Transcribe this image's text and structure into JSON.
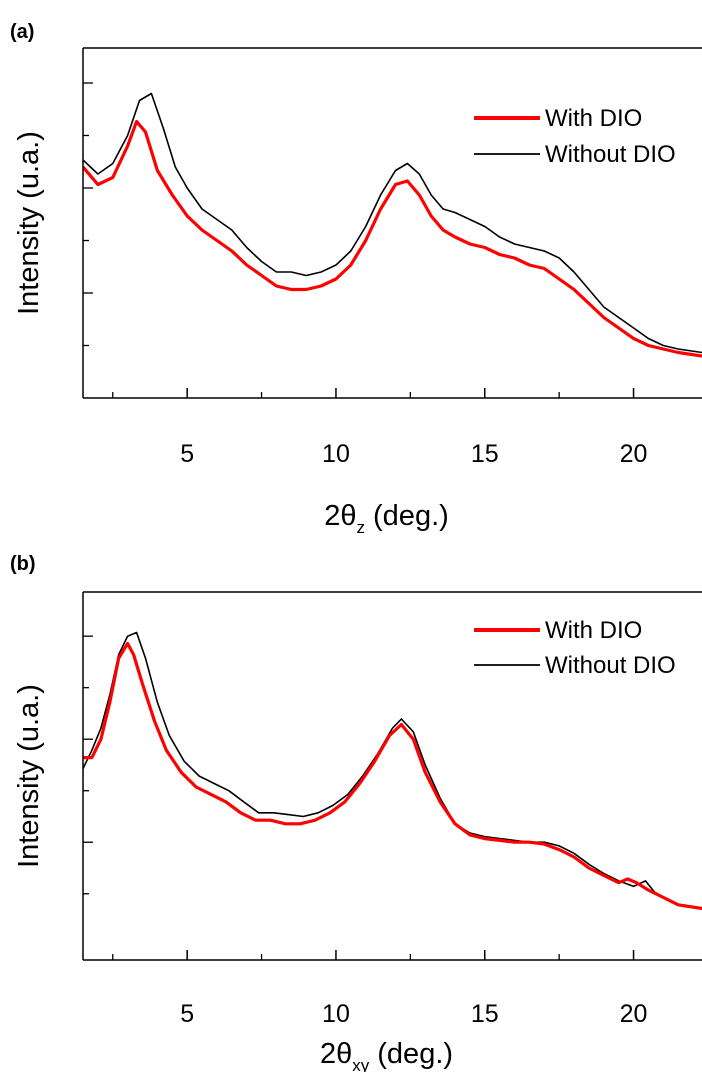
{
  "chart_data": [
    {
      "type": "line",
      "panel_label": "(a)",
      "xlabel_main": "2θ",
      "xlabel_sub": "z",
      "xlabel_tail": " (deg.)",
      "ylabel": "Intensity (u.a.)",
      "xlim": [
        1.5,
        22.3
      ],
      "ylim": [
        0,
        1
      ],
      "x_ticks": [
        5,
        10,
        15,
        20
      ],
      "x_tick_labels": [
        "5",
        "10",
        "15",
        "20"
      ],
      "x_minor_ticks": [
        2.5,
        7.5,
        12.5,
        17.5
      ],
      "y_ticks": [
        0.15,
        0.3,
        0.45,
        0.6,
        0.75,
        0.9
      ],
      "y_tick_labels_shown": false,
      "legend_position": "top-right",
      "series": [
        {
          "name": "With DIO",
          "color": "#ff0000",
          "x": [
            1.5,
            2.0,
            2.5,
            3.0,
            3.3,
            3.6,
            4.0,
            4.5,
            5.0,
            5.5,
            6.0,
            6.5,
            7.0,
            7.5,
            8.0,
            8.5,
            9.0,
            9.5,
            10.0,
            10.5,
            11.0,
            11.5,
            12.0,
            12.4,
            12.8,
            13.2,
            13.6,
            14.0,
            14.5,
            15.0,
            15.5,
            16.0,
            16.5,
            17.0,
            17.5,
            18.0,
            18.5,
            19.0,
            19.5,
            20.0,
            20.5,
            21.0,
            21.5,
            22.3
          ],
          "y": [
            0.66,
            0.61,
            0.63,
            0.72,
            0.79,
            0.76,
            0.65,
            0.58,
            0.52,
            0.48,
            0.45,
            0.42,
            0.38,
            0.35,
            0.32,
            0.31,
            0.31,
            0.32,
            0.34,
            0.38,
            0.45,
            0.54,
            0.61,
            0.62,
            0.58,
            0.52,
            0.48,
            0.46,
            0.44,
            0.43,
            0.41,
            0.4,
            0.38,
            0.37,
            0.34,
            0.31,
            0.27,
            0.23,
            0.2,
            0.17,
            0.15,
            0.14,
            0.13,
            0.12
          ]
        },
        {
          "name": "Without DIO",
          "color": "#000000",
          "x": [
            1.5,
            2.0,
            2.5,
            3.0,
            3.4,
            3.8,
            4.2,
            4.6,
            5.0,
            5.5,
            6.0,
            6.5,
            7.0,
            7.5,
            8.0,
            8.5,
            9.0,
            9.5,
            10.0,
            10.5,
            11.0,
            11.5,
            12.0,
            12.4,
            12.8,
            13.2,
            13.6,
            14.0,
            14.5,
            15.0,
            15.5,
            16.0,
            16.5,
            17.0,
            17.5,
            18.0,
            18.5,
            19.0,
            19.5,
            20.0,
            20.5,
            21.0,
            21.5,
            22.3
          ],
          "y": [
            0.68,
            0.64,
            0.67,
            0.75,
            0.85,
            0.87,
            0.77,
            0.66,
            0.6,
            0.54,
            0.51,
            0.48,
            0.43,
            0.39,
            0.36,
            0.36,
            0.35,
            0.36,
            0.38,
            0.42,
            0.49,
            0.58,
            0.65,
            0.67,
            0.64,
            0.58,
            0.54,
            0.53,
            0.51,
            0.49,
            0.46,
            0.44,
            0.43,
            0.42,
            0.4,
            0.36,
            0.31,
            0.26,
            0.23,
            0.2,
            0.17,
            0.15,
            0.14,
            0.13
          ]
        }
      ]
    },
    {
      "type": "line",
      "panel_label": "(b)",
      "xlabel_main": "2θ",
      "xlabel_sub": "xy",
      "xlabel_tail": " (deg.)",
      "ylabel": "Intensity (u.a.)",
      "xlim": [
        1.5,
        22.3
      ],
      "ylim": [
        0,
        1
      ],
      "x_ticks": [
        5,
        10,
        15,
        20
      ],
      "x_tick_labels": [
        "5",
        "10",
        "15",
        "20"
      ],
      "x_minor_ticks": [
        2.5,
        7.5,
        12.5,
        17.5
      ],
      "y_ticks": [
        0.18,
        0.32,
        0.46,
        0.6,
        0.74,
        0.88
      ],
      "y_tick_labels_shown": false,
      "legend_position": "top-right",
      "series": [
        {
          "name": "With DIO",
          "color": "#ff0000",
          "x": [
            1.5,
            1.8,
            2.1,
            2.4,
            2.7,
            3.0,
            3.2,
            3.5,
            3.9,
            4.3,
            4.8,
            5.3,
            5.8,
            6.3,
            6.8,
            7.3,
            7.8,
            8.3,
            8.8,
            9.3,
            9.8,
            10.3,
            10.8,
            11.3,
            11.8,
            12.2,
            12.6,
            13.0,
            13.5,
            14.0,
            14.5,
            15.0,
            15.5,
            16.0,
            16.5,
            17.0,
            17.5,
            18.0,
            18.5,
            19.0,
            19.5,
            19.8,
            20.1,
            20.5,
            21.0,
            21.5,
            22.3
          ],
          "y": [
            0.55,
            0.55,
            0.6,
            0.7,
            0.82,
            0.86,
            0.83,
            0.75,
            0.65,
            0.57,
            0.51,
            0.47,
            0.45,
            0.43,
            0.4,
            0.38,
            0.38,
            0.37,
            0.37,
            0.38,
            0.4,
            0.43,
            0.48,
            0.54,
            0.61,
            0.64,
            0.6,
            0.51,
            0.43,
            0.37,
            0.34,
            0.33,
            0.325,
            0.32,
            0.32,
            0.315,
            0.3,
            0.28,
            0.25,
            0.23,
            0.21,
            0.22,
            0.21,
            0.19,
            0.17,
            0.15,
            0.14
          ]
        },
        {
          "name": "Without DIO",
          "color": "#000000",
          "x": [
            1.5,
            1.8,
            2.1,
            2.4,
            2.7,
            3.0,
            3.3,
            3.6,
            4.0,
            4.4,
            4.9,
            5.4,
            5.9,
            6.4,
            6.9,
            7.4,
            7.9,
            8.4,
            8.9,
            9.4,
            9.9,
            10.4,
            10.9,
            11.4,
            11.9,
            12.2,
            12.6,
            13.0,
            13.5,
            14.0,
            14.5,
            15.0,
            15.5,
            16.0,
            16.5,
            17.0,
            17.5,
            18.0,
            18.5,
            19.0,
            19.5,
            20.0,
            20.4,
            20.7,
            21.0,
            21.5,
            22.3
          ],
          "y": [
            0.52,
            0.57,
            0.63,
            0.72,
            0.83,
            0.88,
            0.89,
            0.82,
            0.7,
            0.61,
            0.54,
            0.5,
            0.48,
            0.46,
            0.43,
            0.4,
            0.4,
            0.395,
            0.39,
            0.4,
            0.42,
            0.45,
            0.5,
            0.56,
            0.63,
            0.655,
            0.62,
            0.53,
            0.44,
            0.37,
            0.345,
            0.335,
            0.33,
            0.325,
            0.32,
            0.32,
            0.31,
            0.29,
            0.26,
            0.235,
            0.215,
            0.2,
            0.215,
            0.185,
            0.17,
            0.15,
            0.14
          ]
        }
      ]
    }
  ]
}
